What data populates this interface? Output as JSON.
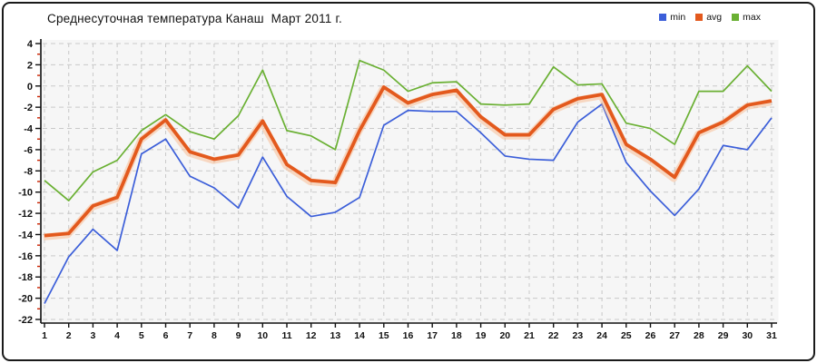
{
  "title": "Среднесуточная температура Канаш  Март 2011 г.",
  "legend": {
    "position": "top-right"
  },
  "chart_data": {
    "type": "line",
    "title": "Среднесуточная температура Канаш  Март 2011 г.",
    "xlabel": "",
    "ylabel": "",
    "x": [
      1,
      2,
      3,
      4,
      5,
      6,
      7,
      8,
      9,
      10,
      11,
      12,
      13,
      14,
      15,
      16,
      17,
      18,
      19,
      20,
      21,
      22,
      23,
      24,
      25,
      26,
      27,
      28,
      29,
      30,
      31
    ],
    "x_tick_labels": [
      "1",
      "2",
      "3",
      "4",
      "5",
      "6",
      "7",
      "8",
      "9",
      "10",
      "11",
      "12",
      "13",
      "14",
      "15",
      "16",
      "17",
      "18",
      "19",
      "20",
      "21",
      "22",
      "23",
      "24",
      "25",
      "26",
      "27",
      "28",
      "29",
      "30",
      "31"
    ],
    "ylim": [
      -22,
      4
    ],
    "y_major_ticks": [
      4,
      2,
      0,
      -2,
      -4,
      -6,
      -8,
      -10,
      -12,
      -14,
      -16,
      -18,
      -20,
      -22
    ],
    "y_minor_ticks": [
      3,
      1,
      -1,
      -3,
      -5,
      -7,
      -9,
      -11,
      -13,
      -15,
      -17,
      -19,
      -21
    ],
    "grid": "dashed-both-axes",
    "legend_position": "top-right",
    "series": [
      {
        "name": "min",
        "color": "#3b5ed9",
        "values": [
          -20.5,
          -16.1,
          -13.5,
          -15.5,
          -6.4,
          -5.0,
          -8.5,
          -9.6,
          -11.5,
          -6.7,
          -10.4,
          -12.3,
          -11.9,
          -10.5,
          -3.7,
          -2.3,
          -2.4,
          -2.4,
          -4.4,
          -6.6,
          -6.9,
          -7.0,
          -3.4,
          -1.7,
          -7.2,
          -9.9,
          -12.2,
          -9.7,
          -5.6,
          -6.0,
          -3.0
        ]
      },
      {
        "name": "avg",
        "color": "#e3591d",
        "values": [
          -14.1,
          -13.9,
          -11.3,
          -10.5,
          -5.0,
          -3.2,
          -6.2,
          -6.9,
          -6.5,
          -3.3,
          -7.4,
          -8.9,
          -9.1,
          -4.2,
          -0.1,
          -1.6,
          -0.8,
          -0.4,
          -2.9,
          -4.6,
          -4.6,
          -2.2,
          -1.2,
          -0.8,
          -5.5,
          -6.9,
          -8.6,
          -4.4,
          -3.4,
          -1.8,
          -1.4
        ]
      },
      {
        "name": "max",
        "color": "#6ab033",
        "values": [
          -8.9,
          -10.8,
          -8.1,
          -7.0,
          -4.2,
          -2.7,
          -4.3,
          -5.0,
          -2.8,
          1.5,
          -4.2,
          -4.7,
          -6.0,
          2.4,
          1.5,
          -0.5,
          0.3,
          0.4,
          -1.7,
          -1.8,
          -1.7,
          1.8,
          0.1,
          0.2,
          -3.5,
          -4.0,
          -5.5,
          -0.5,
          -0.5,
          1.9,
          -0.5
        ]
      }
    ],
    "style": {
      "plot_bg": "#f6f6f6",
      "grid_color": "#c9c9c9",
      "axis_color": "#111111",
      "minor_tick_color": "#cc2200",
      "avg_halo_color": "#f8bd95"
    }
  }
}
